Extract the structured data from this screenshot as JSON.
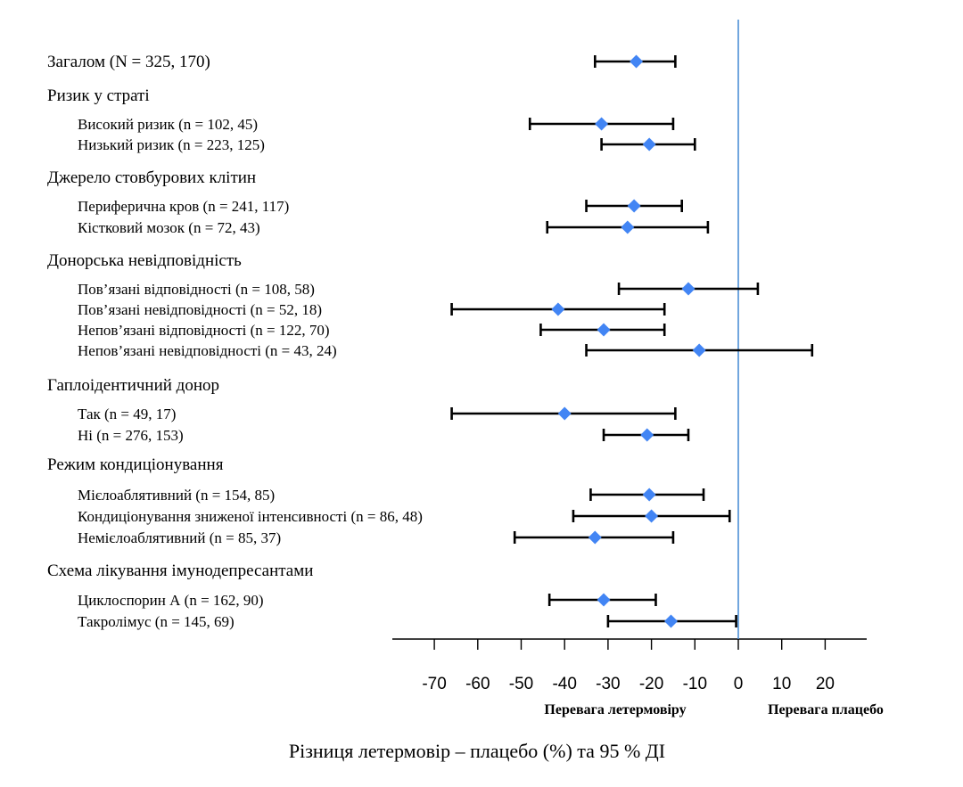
{
  "chart_data": {
    "type": "forest",
    "xlabel": "Різниця летермовір – плацебо (%) та 95 % ДІ",
    "xlim": [
      -75,
      30
    ],
    "ticks": [
      -70,
      -60,
      -50,
      -40,
      -30,
      -20,
      -10,
      0,
      10,
      20
    ],
    "reference_value": 0,
    "favors_left": "Перевага летермовіру",
    "favors_right": "Перевага плацебо",
    "colors": {
      "marker": "#4285f4",
      "reference_line": "#4d8fd6",
      "ci": "#000000"
    },
    "rows": [
      {
        "label": "Загалом (N = 325, 170)",
        "kind": "group",
        "estimate": -23.5,
        "lower": -33,
        "upper": -14.5
      },
      {
        "label": "Ризик у страті",
        "kind": "group"
      },
      {
        "label": "Високий ризик (n = 102, 45)",
        "kind": "sub",
        "estimate": -31.5,
        "lower": -48,
        "upper": -15
      },
      {
        "label": "Низький ризик (n = 223, 125)",
        "kind": "sub",
        "estimate": -20.5,
        "lower": -31.5,
        "upper": -10
      },
      {
        "label": "Джерело стовбурових клітин",
        "kind": "group"
      },
      {
        "label": "Периферична кров (n = 241, 117)",
        "kind": "sub",
        "estimate": -24,
        "lower": -35,
        "upper": -13
      },
      {
        "label": "Кістковий мозок (n = 72, 43)",
        "kind": "sub",
        "estimate": -25.5,
        "lower": -44,
        "upper": -7
      },
      {
        "label": "Донорська невідповідність",
        "kind": "group"
      },
      {
        "label": "Пов’язані відповідності (n = 108, 58)",
        "kind": "sub",
        "estimate": -11.5,
        "lower": -27.5,
        "upper": 4.5
      },
      {
        "label": "Пов’язані невідповідності (n = 52, 18)",
        "kind": "sub",
        "estimate": -41.5,
        "lower": -66,
        "upper": -17
      },
      {
        "label": "Непов’язані відповідності (n = 122, 70)",
        "kind": "sub",
        "estimate": -31,
        "lower": -45.5,
        "upper": -17
      },
      {
        "label": "Непов’язані невідповідності (n = 43, 24)",
        "kind": "sub",
        "estimate": -9,
        "lower": -35,
        "upper": 17
      },
      {
        "label": "Гаплоідентичний донор",
        "kind": "group"
      },
      {
        "label": "Так (n = 49, 17)",
        "kind": "sub",
        "estimate": -40,
        "lower": -66,
        "upper": -14.5
      },
      {
        "label": "Ні (n = 276, 153)",
        "kind": "sub",
        "estimate": -21,
        "lower": -31,
        "upper": -11.5
      },
      {
        "label": "Режим кондиціонування",
        "kind": "group"
      },
      {
        "label": "Мієлоаблятивний (n = 154, 85)",
        "kind": "sub",
        "estimate": -20.5,
        "lower": -34,
        "upper": -8
      },
      {
        "label": "Кондиціонування зниженої інтенсивності (n = 86, 48)",
        "kind": "sub",
        "estimate": -20,
        "lower": -38,
        "upper": -2
      },
      {
        "label": "Немієлоаблятивний (n = 85, 37)",
        "kind": "sub",
        "estimate": -33,
        "lower": -51.5,
        "upper": -15
      },
      {
        "label": "Схема лікування імунодепресантами",
        "kind": "group"
      },
      {
        "label": "Циклоспорин А (n = 162, 90)",
        "kind": "sub",
        "estimate": -31,
        "lower": -43.5,
        "upper": -19
      },
      {
        "label": "Такролімус (n = 145, 69)",
        "kind": "sub",
        "estimate": -15.5,
        "lower": -30,
        "upper": -0.5
      }
    ]
  }
}
